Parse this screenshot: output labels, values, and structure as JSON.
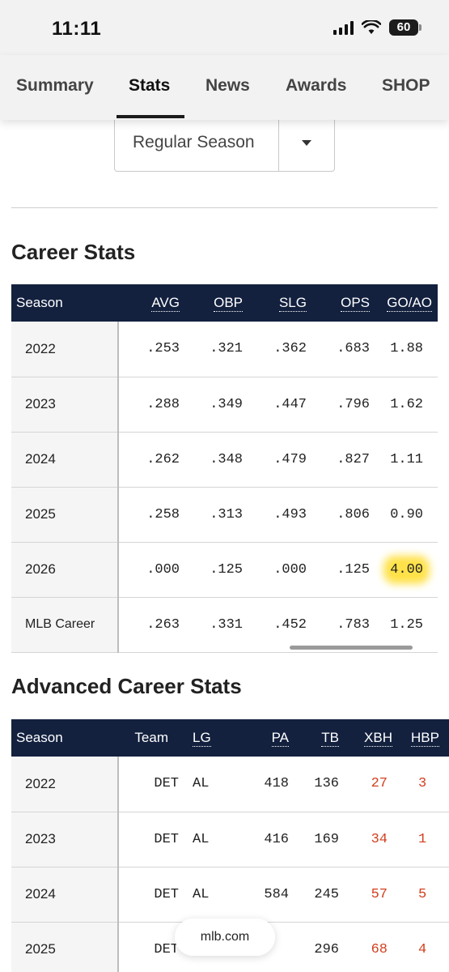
{
  "status_bar": {
    "time": "11:11",
    "battery": "60"
  },
  "tabs": [
    {
      "label": "Summary"
    },
    {
      "label": "Stats"
    },
    {
      "label": "News"
    },
    {
      "label": "Awards"
    },
    {
      "label": "SHOP"
    }
  ],
  "active_tab": "Stats",
  "season_filter": {
    "value": "Regular Season"
  },
  "career_stats": {
    "title": "Career Stats",
    "columns": [
      "Season",
      "AVG",
      "OBP",
      "SLG",
      "OPS",
      "GO/AO"
    ],
    "rows": [
      [
        "2022",
        ".253",
        ".321",
        ".362",
        ".683",
        "1.88"
      ],
      [
        "2023",
        ".288",
        ".349",
        ".447",
        ".796",
        "1.62"
      ],
      [
        "2024",
        ".262",
        ".348",
        ".479",
        ".827",
        "1.11"
      ],
      [
        "2025",
        ".258",
        ".313",
        ".493",
        ".806",
        "0.90"
      ],
      [
        "2026",
        ".000",
        ".125",
        ".000",
        ".125",
        "4.00"
      ],
      [
        "MLB Career",
        ".263",
        ".331",
        ".452",
        ".783",
        "1.25"
      ]
    ],
    "highlight_color": "#ffe24a"
  },
  "advanced_stats": {
    "title": "Advanced Career Stats",
    "columns": [
      "Season",
      "Team",
      "LG",
      "PA",
      "TB",
      "XBH",
      "HBP"
    ],
    "rows": [
      [
        "2022",
        "DET",
        "AL",
        "418",
        "136",
        "27",
        "3"
      ],
      [
        "2023",
        "DET",
        "AL",
        "416",
        "169",
        "34",
        "1"
      ],
      [
        "2024",
        "DET",
        "AL",
        "584",
        "245",
        "57",
        "5"
      ],
      [
        "2025",
        "DET",
        "",
        "",
        "296",
        "68",
        "4"
      ]
    ],
    "accent_color": "#d2401f"
  },
  "url_bar": {
    "host": "mlb.com"
  },
  "colors": {
    "header_navy": "#13213f",
    "background": "#ffffff"
  }
}
